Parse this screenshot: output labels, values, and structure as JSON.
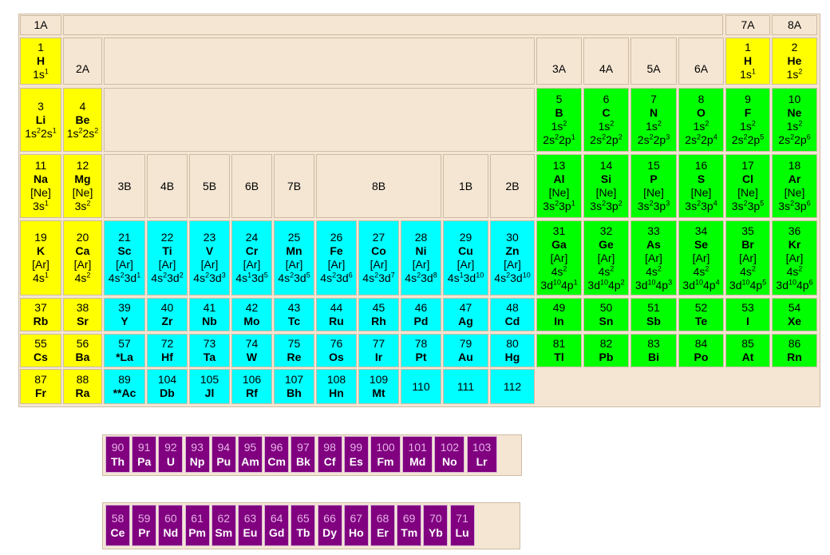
{
  "table": {
    "group_headers": [
      "1A",
      "2A",
      "3A",
      "4A",
      "5A",
      "6A",
      "7A",
      "8A"
    ],
    "transition_headers": [
      "3B",
      "4B",
      "5B",
      "6B",
      "7B",
      "8B",
      "1B",
      "2B"
    ],
    "colors": {
      "s_block": "#ffff00",
      "d_block": "#00ffff",
      "p_block": "#00ff00",
      "f_block": "#800080",
      "background": "#f5e6d3"
    },
    "elements": [
      {
        "n": "1",
        "sym": "H",
        "cfg": [
          "1s^1"
        ],
        "block": "s",
        "col": 1,
        "row": 1
      },
      {
        "n": "2",
        "sym": "He",
        "cfg": [
          "1s^2"
        ],
        "block": "s",
        "col": 18,
        "row": 1
      },
      {
        "n": "1",
        "sym": "H",
        "cfg": [
          "1s^1"
        ],
        "block": "s",
        "col": 17,
        "row": 1
      },
      {
        "n": "3",
        "sym": "Li",
        "cfg": [
          "1s^22s^1"
        ],
        "block": "s",
        "col": 1,
        "row": 2
      },
      {
        "n": "4",
        "sym": "Be",
        "cfg": [
          "1s^22s^2"
        ],
        "block": "s",
        "col": 2,
        "row": 2
      },
      {
        "n": "5",
        "sym": "B",
        "cfg": [
          "1s^2",
          "2s^22p^1"
        ],
        "block": "p",
        "col": 13,
        "row": 2
      },
      {
        "n": "6",
        "sym": "C",
        "cfg": [
          "1s^2",
          "2s^22p^2"
        ],
        "block": "p",
        "col": 14,
        "row": 2
      },
      {
        "n": "7",
        "sym": "N",
        "cfg": [
          "1s^2",
          "2s^22p^3"
        ],
        "block": "p",
        "col": 15,
        "row": 2
      },
      {
        "n": "8",
        "sym": "O",
        "cfg": [
          "1s^2",
          "2s^22p^4"
        ],
        "block": "p",
        "col": 16,
        "row": 2
      },
      {
        "n": "9",
        "sym": "F",
        "cfg": [
          "1s^2",
          "2s^22p^5"
        ],
        "block": "p",
        "col": 17,
        "row": 2
      },
      {
        "n": "10",
        "sym": "Ne",
        "cfg": [
          "1s^2",
          "2s^22p^6"
        ],
        "block": "p",
        "col": 18,
        "row": 2
      },
      {
        "n": "11",
        "sym": "Na",
        "cfg": [
          "[Ne]",
          "3s^1"
        ],
        "block": "s",
        "col": 1,
        "row": 3
      },
      {
        "n": "12",
        "sym": "Mg",
        "cfg": [
          "[Ne]",
          "3s^2"
        ],
        "block": "s",
        "col": 2,
        "row": 3
      },
      {
        "n": "13",
        "sym": "Al",
        "cfg": [
          "[Ne]",
          "3s^23p^1"
        ],
        "block": "p",
        "col": 13,
        "row": 3
      },
      {
        "n": "14",
        "sym": "Si",
        "cfg": [
          "[Ne]",
          "3s^23p^2"
        ],
        "block": "p",
        "col": 14,
        "row": 3
      },
      {
        "n": "15",
        "sym": "P",
        "cfg": [
          "[Ne]",
          "3s^23p^3"
        ],
        "block": "p",
        "col": 15,
        "row": 3
      },
      {
        "n": "16",
        "sym": "S",
        "cfg": [
          "[Ne]",
          "3s^23p^4"
        ],
        "block": "p",
        "col": 16,
        "row": 3
      },
      {
        "n": "17",
        "sym": "Cl",
        "cfg": [
          "[Ne]",
          "3s^23p^5"
        ],
        "block": "p",
        "col": 17,
        "row": 3
      },
      {
        "n": "18",
        "sym": "Ar",
        "cfg": [
          "[Ne]",
          "3s^23p^6"
        ],
        "block": "p",
        "col": 18,
        "row": 3
      },
      {
        "n": "19",
        "sym": "K",
        "cfg": [
          "[Ar]",
          "4s^1"
        ],
        "block": "s",
        "col": 1,
        "row": 4
      },
      {
        "n": "20",
        "sym": "Ca",
        "cfg": [
          "[Ar]",
          "4s^2"
        ],
        "block": "s",
        "col": 2,
        "row": 4
      },
      {
        "n": "21",
        "sym": "Sc",
        "cfg": [
          "[Ar]",
          "4s^23d^1"
        ],
        "block": "d",
        "col": 3,
        "row": 4
      },
      {
        "n": "22",
        "sym": "Ti",
        "cfg": [
          "[Ar]",
          "4s^23d^2"
        ],
        "block": "d",
        "col": 4,
        "row": 4
      },
      {
        "n": "23",
        "sym": "V",
        "cfg": [
          "[Ar]",
          "4s^23d^3"
        ],
        "block": "d",
        "col": 5,
        "row": 4
      },
      {
        "n": "24",
        "sym": "Cr",
        "cfg": [
          "[Ar]",
          "4s^13d^5"
        ],
        "block": "d",
        "col": 6,
        "row": 4
      },
      {
        "n": "25",
        "sym": "Mn",
        "cfg": [
          "[Ar]",
          "4s^23d^5"
        ],
        "block": "d",
        "col": 7,
        "row": 4
      },
      {
        "n": "26",
        "sym": "Fe",
        "cfg": [
          "[Ar]",
          "4s^23d^6"
        ],
        "block": "d",
        "col": 8,
        "row": 4
      },
      {
        "n": "27",
        "sym": "Co",
        "cfg": [
          "[Ar]",
          "4s^23d^7"
        ],
        "block": "d",
        "col": 9,
        "row": 4
      },
      {
        "n": "28",
        "sym": "Ni",
        "cfg": [
          "[Ar]",
          "4s^23d^8"
        ],
        "block": "d",
        "col": 10,
        "row": 4
      },
      {
        "n": "29",
        "sym": "Cu",
        "cfg": [
          "[Ar]",
          "4s^13d^10"
        ],
        "block": "d",
        "col": 11,
        "row": 4
      },
      {
        "n": "30",
        "sym": "Zn",
        "cfg": [
          "[Ar]",
          "4s^23d^10"
        ],
        "block": "d",
        "col": 12,
        "row": 4
      },
      {
        "n": "31",
        "sym": "Ga",
        "cfg": [
          "[Ar]",
          "4s^2",
          "3d^104p^1"
        ],
        "block": "p",
        "col": 13,
        "row": 4
      },
      {
        "n": "32",
        "sym": "Ge",
        "cfg": [
          "[Ar]",
          "4s^2",
          "3d^104p^2"
        ],
        "block": "p",
        "col": 14,
        "row": 4
      },
      {
        "n": "33",
        "sym": "As",
        "cfg": [
          "[Ar]",
          "4s^2",
          "3d^104p^3"
        ],
        "block": "p",
        "col": 15,
        "row": 4
      },
      {
        "n": "34",
        "sym": "Se",
        "cfg": [
          "[Ar]",
          "4s^2",
          "3d^104p^4"
        ],
        "block": "p",
        "col": 16,
        "row": 4
      },
      {
        "n": "35",
        "sym": "Br",
        "cfg": [
          "[Ar]",
          "4s^2",
          "3d^104p^5"
        ],
        "block": "p",
        "col": 17,
        "row": 4
      },
      {
        "n": "36",
        "sym": "Kr",
        "cfg": [
          "[Ar]",
          "4s^2",
          "3d^104p^6"
        ],
        "block": "p",
        "col": 18,
        "row": 4
      },
      {
        "n": "37",
        "sym": "Rb",
        "cfg": [],
        "block": "s",
        "col": 1,
        "row": 5
      },
      {
        "n": "38",
        "sym": "Sr",
        "cfg": [],
        "block": "s",
        "col": 2,
        "row": 5
      },
      {
        "n": "39",
        "sym": "Y",
        "cfg": [],
        "block": "d",
        "col": 3,
        "row": 5
      },
      {
        "n": "40",
        "sym": "Zr",
        "cfg": [],
        "block": "d",
        "col": 4,
        "row": 5
      },
      {
        "n": "41",
        "sym": "Nb",
        "cfg": [],
        "block": "d",
        "col": 5,
        "row": 5
      },
      {
        "n": "42",
        "sym": "Mo",
        "cfg": [],
        "block": "d",
        "col": 6,
        "row": 5
      },
      {
        "n": "43",
        "sym": "Tc",
        "cfg": [],
        "block": "d",
        "col": 7,
        "row": 5
      },
      {
        "n": "44",
        "sym": "Ru",
        "cfg": [],
        "block": "d",
        "col": 8,
        "row": 5
      },
      {
        "n": "45",
        "sym": "Rh",
        "cfg": [],
        "block": "d",
        "col": 9,
        "row": 5
      },
      {
        "n": "46",
        "sym": "Pd",
        "cfg": [],
        "block": "d",
        "col": 10,
        "row": 5
      },
      {
        "n": "47",
        "sym": "Ag",
        "cfg": [],
        "block": "d",
        "col": 11,
        "row": 5
      },
      {
        "n": "48",
        "sym": "Cd",
        "cfg": [],
        "block": "d",
        "col": 12,
        "row": 5
      },
      {
        "n": "49",
        "sym": "In",
        "cfg": [],
        "block": "p",
        "col": 13,
        "row": 5
      },
      {
        "n": "50",
        "sym": "Sn",
        "cfg": [],
        "block": "p",
        "col": 14,
        "row": 5
      },
      {
        "n": "51",
        "sym": "Sb",
        "cfg": [],
        "block": "p",
        "col": 15,
        "row": 5
      },
      {
        "n": "52",
        "sym": "Te",
        "cfg": [],
        "block": "p",
        "col": 16,
        "row": 5
      },
      {
        "n": "53",
        "sym": "I",
        "cfg": [],
        "block": "p",
        "col": 17,
        "row": 5
      },
      {
        "n": "54",
        "sym": "Xe",
        "cfg": [],
        "block": "p",
        "col": 18,
        "row": 5
      },
      {
        "n": "55",
        "sym": "Cs",
        "cfg": [],
        "block": "s",
        "col": 1,
        "row": 6
      },
      {
        "n": "56",
        "sym": "Ba",
        "cfg": [],
        "block": "s",
        "col": 2,
        "row": 6
      },
      {
        "n": "57",
        "sym": "*La",
        "cfg": [],
        "block": "d",
        "col": 3,
        "row": 6
      },
      {
        "n": "72",
        "sym": "Hf",
        "cfg": [],
        "block": "d",
        "col": 4,
        "row": 6
      },
      {
        "n": "73",
        "sym": "Ta",
        "cfg": [],
        "block": "d",
        "col": 5,
        "row": 6
      },
      {
        "n": "74",
        "sym": "W",
        "cfg": [],
        "block": "d",
        "col": 6,
        "row": 6
      },
      {
        "n": "75",
        "sym": "Re",
        "cfg": [],
        "block": "d",
        "col": 7,
        "row": 6
      },
      {
        "n": "76",
        "sym": "Os",
        "cfg": [],
        "block": "d",
        "col": 8,
        "row": 6
      },
      {
        "n": "77",
        "sym": "Ir",
        "cfg": [],
        "block": "d",
        "col": 9,
        "row": 6
      },
      {
        "n": "78",
        "sym": "Pt",
        "cfg": [],
        "block": "d",
        "col": 10,
        "row": 6
      },
      {
        "n": "79",
        "sym": "Au",
        "cfg": [],
        "block": "d",
        "col": 11,
        "row": 6
      },
      {
        "n": "80",
        "sym": "Hg",
        "cfg": [],
        "block": "d",
        "col": 12,
        "row": 6
      },
      {
        "n": "81",
        "sym": "Tl",
        "cfg": [],
        "block": "p",
        "col": 13,
        "row": 6
      },
      {
        "n": "82",
        "sym": "Pb",
        "cfg": [],
        "block": "p",
        "col": 14,
        "row": 6
      },
      {
        "n": "83",
        "sym": "Bi",
        "cfg": [],
        "block": "p",
        "col": 15,
        "row": 6
      },
      {
        "n": "84",
        "sym": "Po",
        "cfg": [],
        "block": "p",
        "col": 16,
        "row": 6
      },
      {
        "n": "85",
        "sym": "At",
        "cfg": [],
        "block": "p",
        "col": 17,
        "row": 6
      },
      {
        "n": "86",
        "sym": "Rn",
        "cfg": [],
        "block": "p",
        "col": 18,
        "row": 6
      },
      {
        "n": "87",
        "sym": "Fr",
        "cfg": [],
        "block": "s",
        "col": 1,
        "row": 7
      },
      {
        "n": "88",
        "sym": "Ra",
        "cfg": [],
        "block": "s",
        "col": 2,
        "row": 7
      },
      {
        "n": "89",
        "sym": "**Ac",
        "cfg": [],
        "block": "d",
        "col": 3,
        "row": 7
      },
      {
        "n": "104",
        "sym": "Db",
        "cfg": [],
        "block": "d",
        "col": 4,
        "row": 7
      },
      {
        "n": "105",
        "sym": "Jl",
        "cfg": [],
        "block": "d",
        "col": 5,
        "row": 7
      },
      {
        "n": "106",
        "sym": "Rf",
        "cfg": [],
        "block": "d",
        "col": 6,
        "row": 7
      },
      {
        "n": "107",
        "sym": "Bh",
        "cfg": [],
        "block": "d",
        "col": 7,
        "row": 7
      },
      {
        "n": "108",
        "sym": "Hn",
        "cfg": [],
        "block": "d",
        "col": 8,
        "row": 7
      },
      {
        "n": "109",
        "sym": "Mt",
        "cfg": [],
        "block": "d",
        "col": 9,
        "row": 7
      },
      {
        "n": "110",
        "sym": "",
        "cfg": [],
        "block": "d",
        "col": 10,
        "row": 7
      },
      {
        "n": "111",
        "sym": "",
        "cfg": [],
        "block": "d",
        "col": 11,
        "row": 7
      },
      {
        "n": "112",
        "sym": "",
        "cfg": [],
        "block": "d",
        "col": 12,
        "row": 7
      }
    ]
  },
  "actinides": [
    {
      "n": "90",
      "sym": "Th"
    },
    {
      "n": "91",
      "sym": "Pa"
    },
    {
      "n": "92",
      "sym": "U"
    },
    {
      "n": "93",
      "sym": "Np"
    },
    {
      "n": "94",
      "sym": "Pu"
    },
    {
      "n": "95",
      "sym": "Am"
    },
    {
      "n": "96",
      "sym": "Cm"
    },
    {
      "n": "97",
      "sym": "Bk"
    },
    {
      "n": "98",
      "sym": "Cf"
    },
    {
      "n": "99",
      "sym": "Es"
    },
    {
      "n": "100",
      "sym": "Fm"
    },
    {
      "n": "101",
      "sym": "Md"
    },
    {
      "n": "102",
      "sym": "No"
    },
    {
      "n": "103",
      "sym": "Lr"
    }
  ],
  "lanthanides": [
    {
      "n": "58",
      "sym": "Ce"
    },
    {
      "n": "59",
      "sym": "Pr"
    },
    {
      "n": "60",
      "sym": "Nd"
    },
    {
      "n": "61",
      "sym": "Pm"
    },
    {
      "n": "62",
      "sym": "Sm"
    },
    {
      "n": "63",
      "sym": "Eu"
    },
    {
      "n": "64",
      "sym": "Gd"
    },
    {
      "n": "65",
      "sym": "Tb"
    },
    {
      "n": "66",
      "sym": "Dy"
    },
    {
      "n": "67",
      "sym": "Ho"
    },
    {
      "n": "68",
      "sym": "Er"
    },
    {
      "n": "69",
      "sym": "Tm"
    },
    {
      "n": "70",
      "sym": "Yb"
    },
    {
      "n": "71",
      "sym": "Lu"
    }
  ]
}
